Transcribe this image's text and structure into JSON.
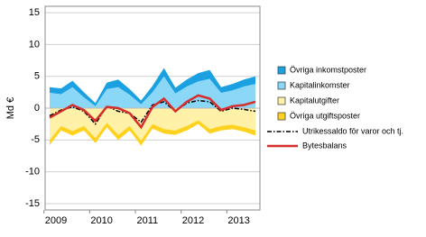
{
  "chart_data": {
    "type": "stacked-area-line",
    "y_label": "Md €",
    "categories": [
      "2009",
      null,
      null,
      null,
      "2010",
      null,
      null,
      null,
      "2011",
      null,
      null,
      null,
      "2012",
      null,
      null,
      null,
      "2013",
      null,
      null
    ],
    "ylim": [
      -16,
      16
    ],
    "yticks": [
      -15,
      -10,
      -5,
      0,
      5,
      10,
      15
    ],
    "grid": true,
    "legend": "right",
    "series": [
      {
        "name": "Övriga inkomstposter",
        "color": "#1ba1e2",
        "kind": "area",
        "stack": "positive",
        "values": [
          0.9,
          0.9,
          1.0,
          0.8,
          0.5,
          1.0,
          1.2,
          0.9,
          0.6,
          1.0,
          1.3,
          0.9,
          1.1,
          1.3,
          1.4,
          0.9,
          1.0,
          1.1,
          1.2
        ]
      },
      {
        "name": "Kapitalinkomster",
        "color": "#8ad7f8",
        "kind": "area",
        "stack": "positive",
        "values": [
          2.4,
          2.2,
          3.3,
          1.7,
          0.3,
          3.0,
          3.3,
          2.1,
          0.6,
          2.5,
          5.0,
          2.3,
          3.4,
          4.2,
          4.6,
          2.4,
          2.8,
          3.4,
          3.8
        ]
      },
      {
        "name": "Kapitalutgifter",
        "color": "#fff1a8",
        "kind": "area",
        "stack": "negative",
        "values": [
          -5.0,
          -2.8,
          -3.6,
          -2.8,
          -4.7,
          -2.3,
          -4.2,
          -2.8,
          -5.1,
          -2.5,
          -3.3,
          -3.5,
          -2.8,
          -1.9,
          -3.3,
          -2.8,
          -2.6,
          -3.0,
          -3.5
        ]
      },
      {
        "name": "Övriga utgiftsposter",
        "color": "#ffd21f",
        "kind": "area",
        "stack": "negative",
        "values": [
          -0.8,
          -0.7,
          -0.7,
          -0.7,
          -0.8,
          -0.7,
          -0.8,
          -0.7,
          -0.8,
          -0.7,
          -0.7,
          -0.7,
          -0.7,
          -0.6,
          -0.7,
          -0.7,
          -0.7,
          -0.7,
          -0.8
        ]
      },
      {
        "name": "Utrikessaldo för varor och tj.",
        "color": "#000000",
        "kind": "line",
        "dash": true,
        "values": [
          -1.2,
          -0.3,
          0.2,
          -0.5,
          -2.5,
          0.3,
          -0.5,
          -0.8,
          -2.2,
          0.5,
          1.0,
          -0.5,
          0.8,
          1.2,
          1.0,
          -0.5,
          0.0,
          -0.2,
          -0.5
        ]
      },
      {
        "name": "Bytesbalans",
        "color": "#d62d2d",
        "kind": "line",
        "dash": false,
        "values": [
          -1.5,
          -0.5,
          0.5,
          -0.3,
          -2.0,
          0.2,
          0.0,
          -0.8,
          -3.0,
          0.2,
          1.5,
          -0.5,
          1.0,
          2.0,
          1.5,
          -0.3,
          0.3,
          0.5,
          1.0
        ]
      }
    ]
  }
}
